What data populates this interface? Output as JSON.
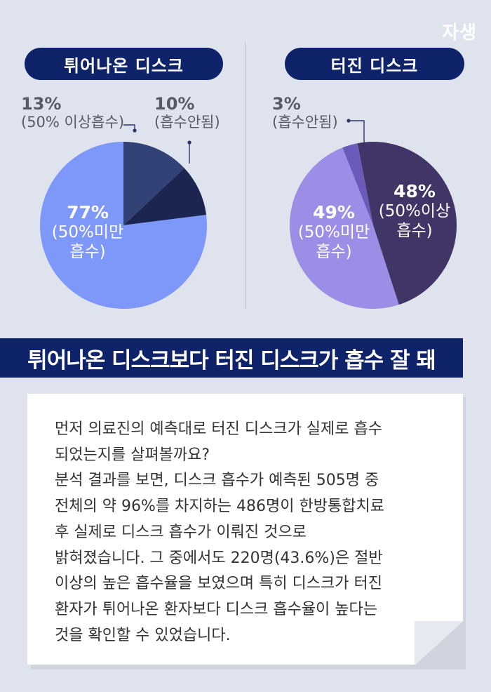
{
  "logo": "자생",
  "chart_data": [
    {
      "type": "pie",
      "title": "튀어나온 디스크",
      "slices": [
        {
          "label": "(50% 이상흡수)",
          "value": 13,
          "value_label": "13%",
          "color": "#334276"
        },
        {
          "label": "(흡수안됨)",
          "value": 10,
          "value_label": "10%",
          "color": "#1c2550"
        },
        {
          "label": "(50%미만 흡수)",
          "value": 77,
          "value_label": "77%",
          "color": "#7e98fa"
        }
      ]
    },
    {
      "type": "pie",
      "title": "터진 디스크",
      "slices": [
        {
          "label": "(50%이상 흡수)",
          "value": 48,
          "value_label": "48%",
          "color": "#403566"
        },
        {
          "label": "(50%미만 흡수)",
          "value": 49,
          "value_label": "49%",
          "color": "#9c8ee6"
        },
        {
          "label": "(흡수안됨)",
          "value": 3,
          "value_label": "3%",
          "color": "#6b5ab9"
        }
      ]
    }
  ],
  "left_labels": {
    "a_pct": "13%",
    "a_sub": "(50% 이상흡수)",
    "b_pct": "10%",
    "b_sub": "(흡수안됨)",
    "c_pct": "77%",
    "c_sub1": "(50%미만",
    "c_sub2": "흡수)"
  },
  "right_labels": {
    "a_pct": "3%",
    "a_sub": "(흡수안됨)",
    "b_pct": "48%",
    "b_sub1": "(50%이상",
    "b_sub2": "흡수)",
    "c_pct": "49%",
    "c_sub1": "(50%미만",
    "c_sub2": "흡수)"
  },
  "banner": "튀어나온 디스크보다 터진 디스크가 흡수 잘 돼",
  "note_lines": [
    "먼저 의료진의 예측대로 터진 디스크가 실제로 흡수",
    "되었는지를 살펴볼까요?",
    "분석 결과를 보면, 디스크 흡수가 예측된 505명 중",
    "전체의 약 96%를 차지하는 486명이 한방통합치료",
    "후 실제로 디스크 흡수가 이뤄진 것으로",
    "밝혀졌습니다. 그 중에서도 220명(43.6%)은 절반",
    "이상의 높은 흡수율을 보였으며 특히 디스크가 터진",
    "환자가 튀어나온 환자보다 디스크 흡수율이 높다는",
    "것을 확인할 수 있었습니다."
  ]
}
